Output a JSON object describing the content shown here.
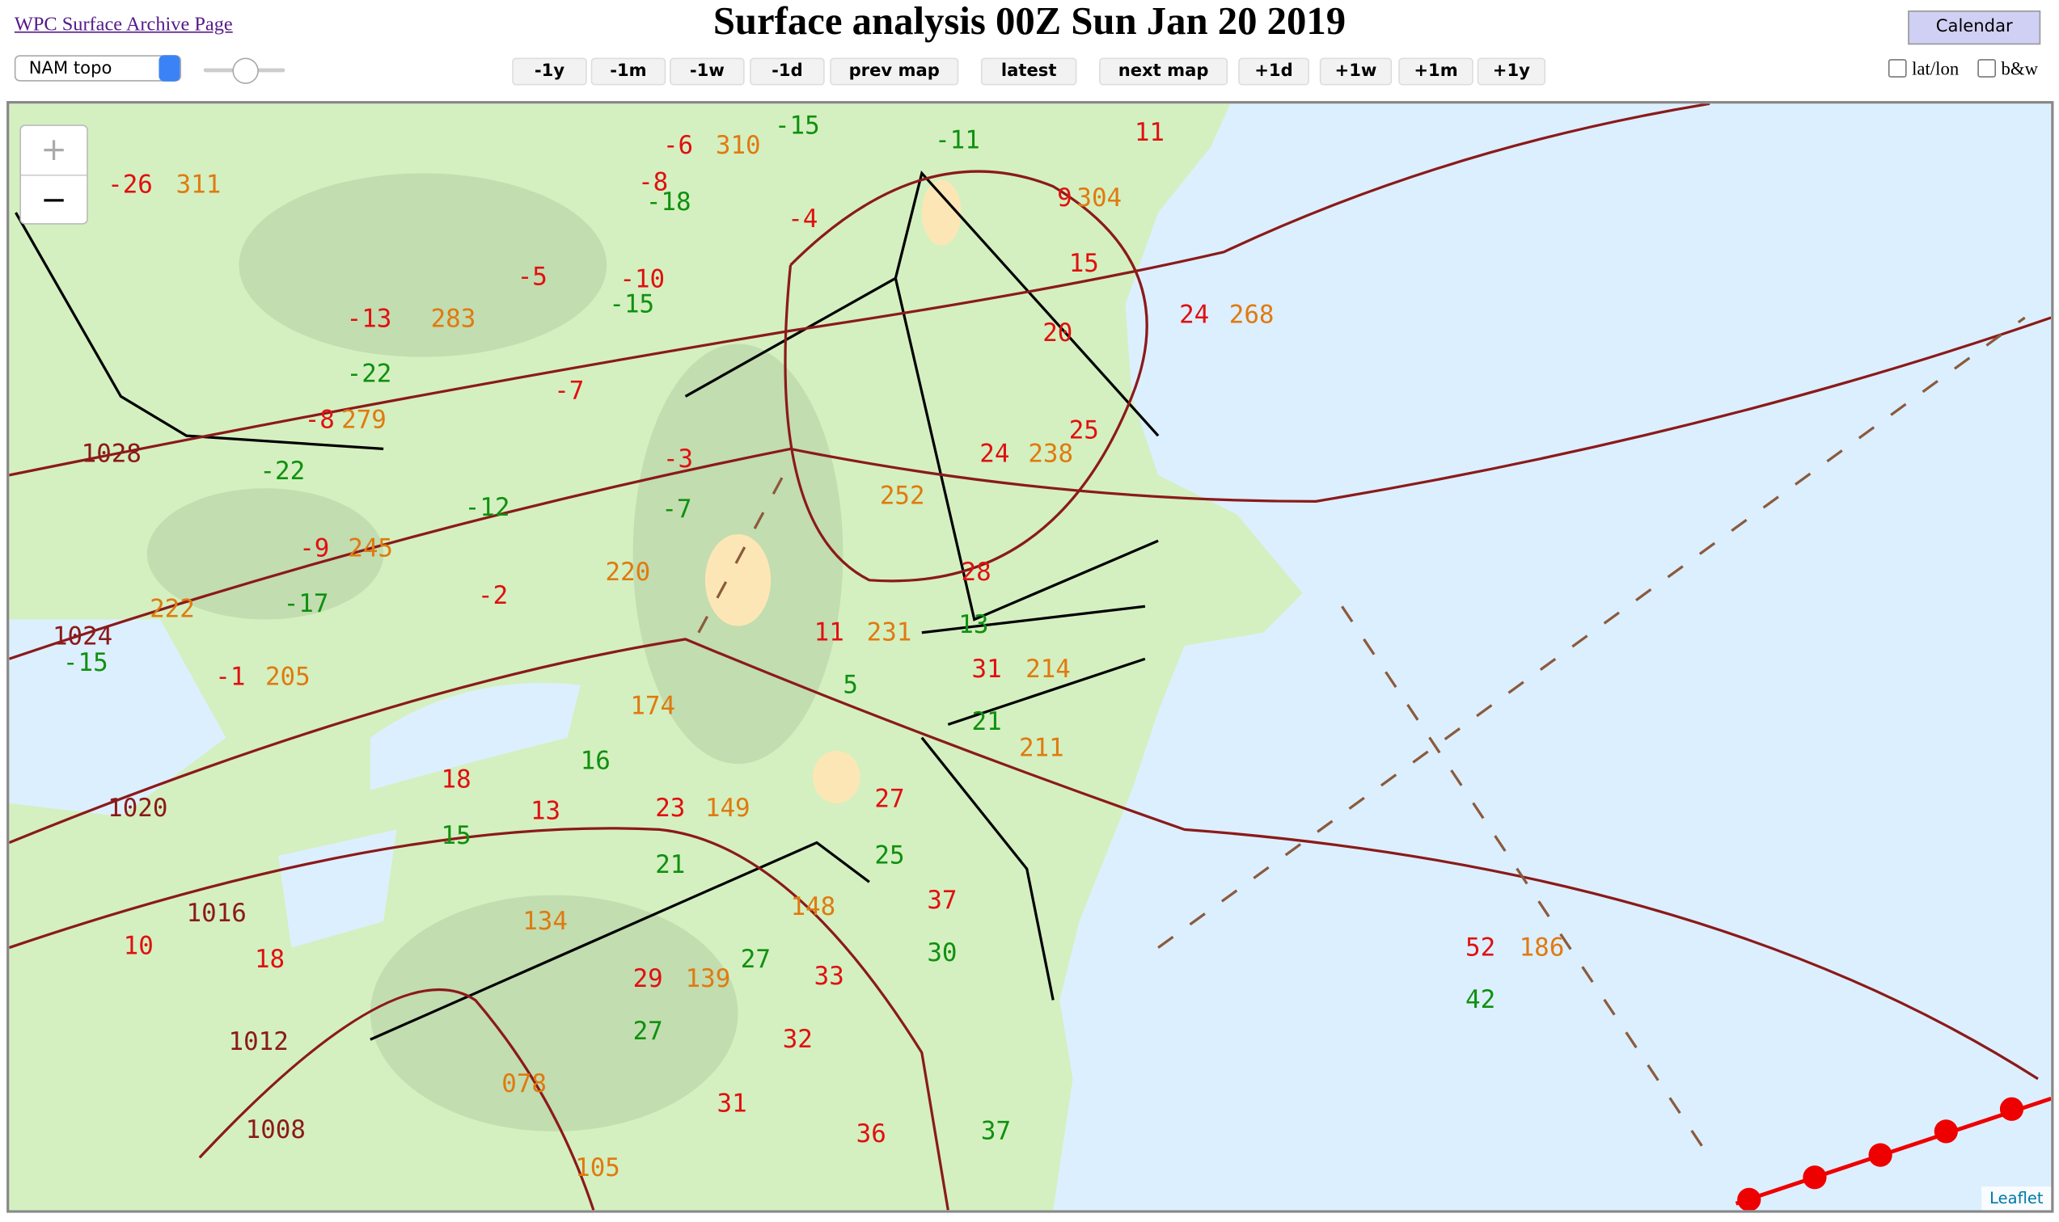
{
  "header": {
    "archive_link": "WPC Surface Archive Page",
    "title": "Surface analysis 00Z Sun Jan 20 2019",
    "calendar_button": "Calendar"
  },
  "controls": {
    "map_select": "NAM topo",
    "nav_buttons": [
      "-1y",
      "-1m",
      "-1w",
      "-1d",
      "prev map",
      "latest",
      "next map",
      "+1d",
      "+1w",
      "+1m",
      "+1y"
    ],
    "checkboxes": [
      "lat/lon",
      "b&w"
    ]
  },
  "map": {
    "zoom_in": "+",
    "zoom_out": "−",
    "attribution": "Leaflet",
    "isobar_labels": [
      "1028",
      "1024",
      "1020",
      "1016",
      "1012",
      "1008"
    ],
    "temperatures": [
      "-26",
      "-6",
      "11",
      "-8",
      "-4",
      "9",
      "15",
      "-5",
      "-10",
      "-13",
      "20",
      "24",
      "-7",
      "-8",
      "25",
      "24",
      "-3",
      "-9",
      "28",
      "-2",
      "11",
      "31",
      "-1",
      "18",
      "13",
      "23",
      "27",
      "37",
      "10",
      "18",
      "29",
      "33",
      "32",
      "31",
      "36",
      "52"
    ],
    "dewpoints": [
      "-15",
      "-11",
      "-18",
      "-15",
      "-22",
      "-22",
      "-12",
      "-7",
      "-17",
      "-15",
      "13",
      "5",
      "21",
      "16",
      "15",
      "21",
      "25",
      "27",
      "27",
      "30",
      "42",
      "37"
    ],
    "pressures": [
      "310",
      "311",
      "304",
      "283",
      "268",
      "279",
      "238",
      "245",
      "252",
      "220",
      "222",
      "231",
      "214",
      "205",
      "174",
      "211",
      "149",
      "148",
      "186",
      "139",
      "134",
      "078",
      "105"
    ]
  }
}
